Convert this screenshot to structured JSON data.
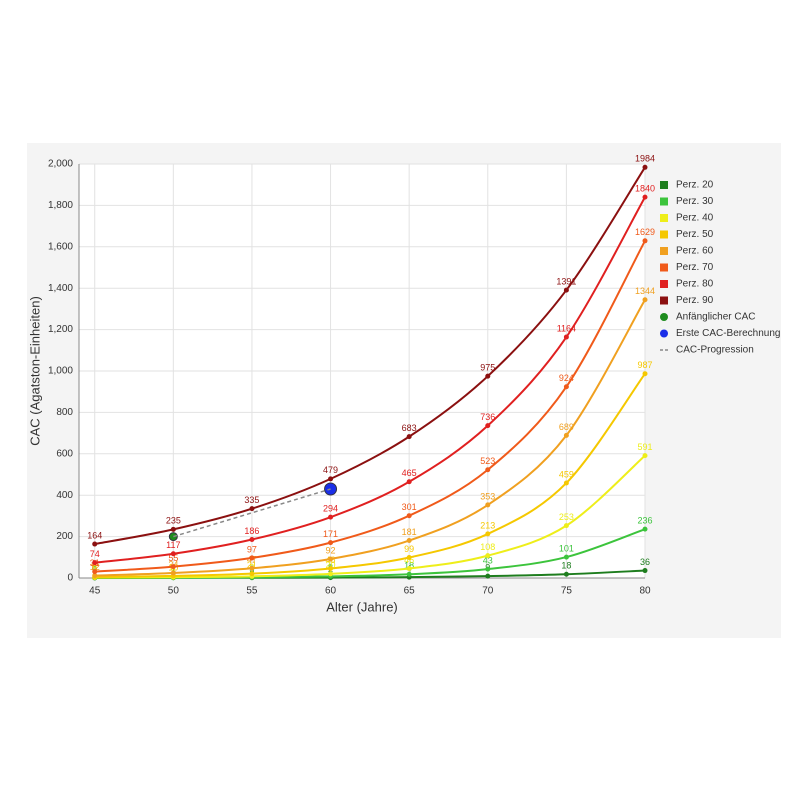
{
  "chart_data": {
    "type": "line",
    "x_label": "Alter (Jahre)",
    "y_label": "CAC (Agatston-Einheiten)",
    "xlim": [
      44,
      80
    ],
    "xticks": [
      45,
      50,
      55,
      60,
      65,
      70,
      75,
      80
    ],
    "ylim": [
      0,
      2000
    ],
    "yticks": [
      0,
      200,
      400,
      600,
      800,
      {
        "value": 1000,
        "label": "1,000"
      },
      {
        "value": 1200,
        "label": "1,200"
      },
      {
        "value": 1400,
        "label": "1,400"
      },
      {
        "value": 1600,
        "label": "1,600"
      },
      {
        "value": 1800,
        "label": "1,800"
      },
      {
        "value": 2000,
        "label": "2,000"
      }
    ],
    "grid": true,
    "legend": "right",
    "x": [
      45,
      50,
      55,
      60,
      65,
      70,
      75,
      80
    ],
    "series": [
      {
        "name": "Perz. 20",
        "color": "#1e7d1e",
        "kind": "line",
        "values": [
          0,
          1,
          1,
          2,
          4,
          9,
          18,
          36
        ]
      },
      {
        "name": "Perz. 30",
        "color": "#3cc43c",
        "kind": "line",
        "values": [
          1,
          1,
          3,
          8,
          18,
          43,
          101,
          236
        ]
      },
      {
        "name": "Perz. 40",
        "color": "#eeee1a",
        "kind": "line",
        "values": [
          2,
          4,
          8,
          20,
          46,
          108,
          253,
          591
        ]
      },
      {
        "name": "Perz. 50",
        "color": "#f5c800",
        "kind": "line",
        "values": [
          5,
          10,
          21,
          46,
          99,
          213,
          459,
          987
        ]
      },
      {
        "name": "Perz. 60",
        "color": "#f0a020",
        "kind": "line",
        "values": [
          12,
          24,
          47,
          92,
          181,
          353,
          689,
          1344
        ]
      },
      {
        "name": "Perz. 70",
        "color": "#f05a1a",
        "kind": "line",
        "values": [
          31,
          55,
          97,
          171,
          301,
          523,
          924,
          1629
        ]
      },
      {
        "name": "Perz. 80",
        "color": "#e02020",
        "kind": "line",
        "values": [
          74,
          117,
          186,
          294,
          465,
          736,
          1164,
          1840
        ]
      },
      {
        "name": "Perz. 90",
        "color": "#8b1010",
        "kind": "line",
        "values": [
          164,
          235,
          335,
          479,
          683,
          975,
          1391,
          1984
        ]
      },
      {
        "name": "Anfänglicher CAC",
        "color": "#1e8c1e",
        "kind": "point",
        "x": [
          50
        ],
        "values": [
          200
        ]
      },
      {
        "name": "Erste CAC-Berechnung",
        "color": "#1a2ee8",
        "kind": "point",
        "x": [
          60
        ],
        "values": [
          430
        ]
      },
      {
        "name": "CAC-Progression",
        "color": "#888888",
        "kind": "dashed",
        "x": [
          50,
          60
        ],
        "values": [
          200,
          430
        ]
      }
    ]
  }
}
